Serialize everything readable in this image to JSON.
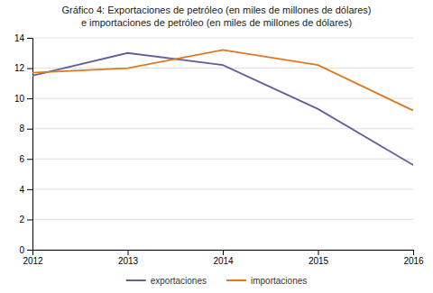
{
  "chart_data": {
    "type": "line",
    "title": "Gráfico 4: Exportaciones de petróleo (en miles de millones de dólares)\ne importaciones de petróleo (en miles de millones de dólares)",
    "x": [
      2012,
      2013,
      2014,
      2015,
      2016
    ],
    "series": [
      {
        "name": "exportaciones",
        "color": "#6060a0",
        "values": [
          11.5,
          13.0,
          12.2,
          9.3,
          5.6
        ]
      },
      {
        "name": "importaciones",
        "color": "#e07820",
        "values": [
          11.7,
          12.0,
          13.2,
          12.2,
          9.2
        ]
      }
    ],
    "xlim": [
      2012,
      2016
    ],
    "xticks": [
      2012,
      2013,
      2014,
      2015,
      2016
    ],
    "ylim": [
      0,
      14
    ],
    "yticks": [
      0,
      2,
      4,
      6,
      8,
      10,
      12,
      14
    ],
    "grid": true,
    "legend": "bottom"
  }
}
